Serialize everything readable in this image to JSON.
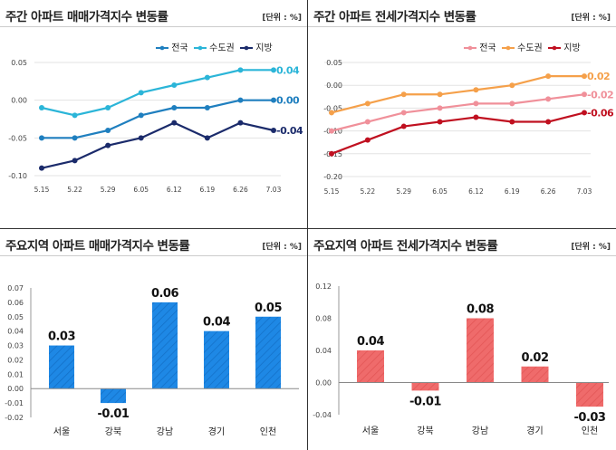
{
  "charts": [
    {
      "title": "주간 아파트 매매가격지수 변동률",
      "unit": "[단위 : %]",
      "colors": [
        "#1f7fbf",
        "#2bb5d8",
        "#1b2b6b"
      ],
      "chart_data": {
        "type": "line",
        "x": [
          "5.15",
          "5.22",
          "5.29",
          "6.05",
          "6.12",
          "6.19",
          "6.26",
          "7.03"
        ],
        "ylim": [
          -0.1,
          0.05
        ],
        "yticks": [
          "0.05",
          "0.00",
          "-0.05",
          "-0.10"
        ],
        "series": [
          {
            "name": "전국",
            "values": [
              -0.05,
              -0.05,
              -0.04,
              -0.02,
              -0.01,
              -0.01,
              0.0,
              0.0
            ],
            "end_label": "0.00"
          },
          {
            "name": "수도권",
            "values": [
              -0.01,
              -0.02,
              -0.01,
              0.01,
              0.02,
              0.03,
              0.04,
              0.04
            ],
            "end_label": "0.04"
          },
          {
            "name": "지방",
            "values": [
              -0.09,
              -0.08,
              -0.06,
              -0.05,
              -0.03,
              -0.05,
              -0.03,
              -0.04
            ],
            "end_label": "-0.04"
          }
        ]
      }
    },
    {
      "title": "주간 아파트 전세가격지수 변동률",
      "unit": "[단위 : %]",
      "colors": [
        "#f0909a",
        "#f5a04a",
        "#c01020"
      ],
      "chart_data": {
        "type": "line",
        "x": [
          "5.15",
          "5.22",
          "5.29",
          "6.05",
          "6.12",
          "6.19",
          "6.26",
          "7.03"
        ],
        "ylim": [
          -0.2,
          0.05
        ],
        "yticks": [
          "0.05",
          "0.00",
          "-0.05",
          "-0.10",
          "-0.15",
          "-0.20"
        ],
        "series": [
          {
            "name": "전국",
            "values": [
              -0.1,
              -0.08,
              -0.06,
              -0.05,
              -0.04,
              -0.04,
              -0.03,
              -0.02
            ],
            "end_label": "-0.02"
          },
          {
            "name": "수도권",
            "values": [
              -0.06,
              -0.04,
              -0.02,
              -0.02,
              -0.01,
              0.0,
              0.02,
              0.02
            ],
            "end_label": "0.02"
          },
          {
            "name": "지방",
            "values": [
              -0.15,
              -0.12,
              -0.09,
              -0.08,
              -0.07,
              -0.08,
              -0.08,
              -0.06
            ],
            "end_label": "-0.06"
          }
        ]
      }
    },
    {
      "title": "주요지역 아파트 매매가격지수 변동률",
      "unit": "[단위 : %]",
      "colors": [
        "#1e88e5",
        "#0b5fb0"
      ],
      "chart_data": {
        "type": "bar",
        "categories": [
          "서울",
          "강북",
          "강남",
          "경기",
          "인천"
        ],
        "values": [
          0.03,
          -0.01,
          0.06,
          0.04,
          0.05
        ],
        "labels": [
          "0.03",
          "-0.01",
          "0.06",
          "0.04",
          "0.05"
        ],
        "ylim": [
          -0.02,
          0.07
        ],
        "yticks": [
          "0.07",
          "0.06",
          "0.05",
          "0.04",
          "0.03",
          "0.02",
          "0.01",
          "0.00",
          "-0.01",
          "-0.02"
        ]
      }
    },
    {
      "title": "주요지역 아파트 전세가격지수 변동률",
      "unit": "[단위 : %]",
      "colors": [
        "#ef6b6b",
        "#d94545"
      ],
      "chart_data": {
        "type": "bar",
        "categories": [
          "서울",
          "강북",
          "강남",
          "경기",
          "인천"
        ],
        "values": [
          0.04,
          -0.01,
          0.08,
          0.02,
          -0.03
        ],
        "labels": [
          "0.04",
          "-0.01",
          "0.08",
          "0.02",
          "-0.03"
        ],
        "ylim": [
          -0.04,
          0.12
        ],
        "yticks": [
          "0.12",
          "0.08",
          "0.04",
          "0.00",
          "-0.04"
        ]
      }
    }
  ]
}
